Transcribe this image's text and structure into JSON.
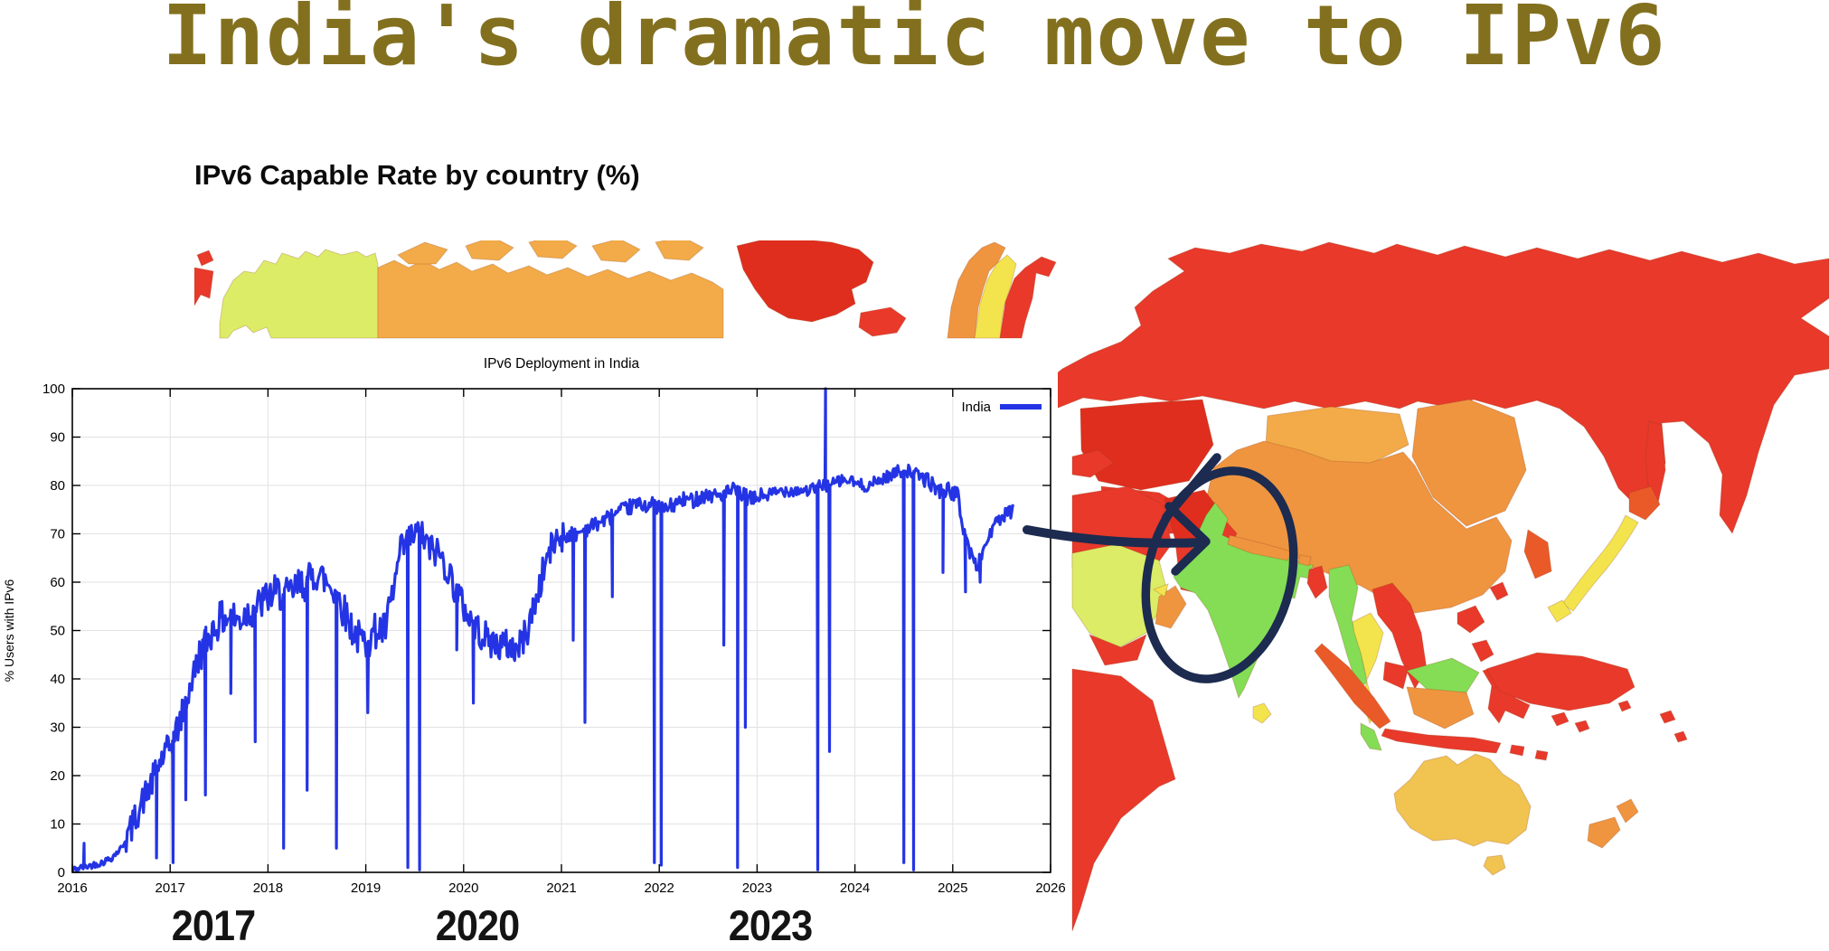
{
  "headline": {
    "text": "India's dramatic move to IPv6",
    "color": "#83701f"
  },
  "map": {
    "heading": "IPv6 Capable Rate by country (%)",
    "colors": {
      "red": "#e8392b",
      "red2": "#df2e1e",
      "red_orange": "#ea5a28",
      "orange": "#ef9540",
      "orange_light": "#f2ab48",
      "yellow_orange": "#f1c351",
      "yellow": "#f3e44e",
      "ygreen": "#dcec67",
      "green": "#84dd55",
      "border": "rgba(140,60,20,0.25)"
    },
    "regions": [
      {
        "key": "chukotka",
        "level": "red"
      },
      {
        "key": "alaska",
        "level": "ygreen"
      },
      {
        "key": "canada-north",
        "level": "orange_light"
      },
      {
        "key": "canada-islands",
        "level": "orange_light"
      },
      {
        "key": "greenland",
        "level": "red2"
      },
      {
        "key": "iceland",
        "level": "red"
      },
      {
        "key": "norway",
        "level": "orange"
      },
      {
        "key": "sweden",
        "level": "yellow"
      },
      {
        "key": "finland",
        "level": "red"
      },
      {
        "key": "russia",
        "level": "red"
      },
      {
        "key": "sakhalin",
        "level": "red"
      },
      {
        "key": "kazakhstan",
        "level": "red2"
      },
      {
        "key": "central-asia",
        "level": "red"
      },
      {
        "key": "mongolia",
        "level": "orange_light"
      },
      {
        "key": "manchuria",
        "level": "orange"
      },
      {
        "key": "china",
        "level": "orange"
      },
      {
        "key": "korea",
        "level": "red_orange"
      },
      {
        "key": "japan-honshu",
        "level": "yellow"
      },
      {
        "key": "hokkaido",
        "level": "red_orange"
      },
      {
        "key": "kyushu",
        "level": "yellow"
      },
      {
        "key": "turkey",
        "level": "red"
      },
      {
        "key": "iran",
        "level": "red"
      },
      {
        "key": "afghanistan",
        "level": "red2"
      },
      {
        "key": "pakistan",
        "level": "red"
      },
      {
        "key": "saudi-arabia",
        "level": "ygreen"
      },
      {
        "key": "yemen",
        "level": "red"
      },
      {
        "key": "oman",
        "level": "orange"
      },
      {
        "key": "uae",
        "level": "yellow"
      },
      {
        "key": "africa-ne",
        "level": "red"
      },
      {
        "key": "india",
        "level": "green"
      },
      {
        "key": "sri-lanka",
        "level": "yellow"
      },
      {
        "key": "nepal",
        "level": "orange"
      },
      {
        "key": "bangladesh",
        "level": "red"
      },
      {
        "key": "myanmar",
        "level": "green"
      },
      {
        "key": "thailand",
        "level": "yellow"
      },
      {
        "key": "vietnam-laos",
        "level": "red"
      },
      {
        "key": "cambodia",
        "level": "red"
      },
      {
        "key": "malaysia",
        "level": "green"
      },
      {
        "key": "borneo-north",
        "level": "green"
      },
      {
        "key": "borneo-south",
        "level": "orange"
      },
      {
        "key": "sumatra",
        "level": "red_orange"
      },
      {
        "key": "java",
        "level": "red"
      },
      {
        "key": "sulawesi",
        "level": "red"
      },
      {
        "key": "philippines",
        "level": "red"
      },
      {
        "key": "taiwan",
        "level": "red"
      },
      {
        "key": "new-guinea",
        "level": "red"
      },
      {
        "key": "pacific-islands",
        "level": "red"
      },
      {
        "key": "australia",
        "level": "yellow_orange"
      },
      {
        "key": "tasmania",
        "level": "yellow_orange"
      },
      {
        "key": "new-zealand",
        "level": "orange"
      }
    ],
    "annotation": {
      "color": "#1c2b4f",
      "target": "India",
      "shapes": [
        "ellipse-around-india",
        "arrow-to-india"
      ]
    }
  },
  "callouts": [
    "2017",
    "2020",
    "2023"
  ],
  "chart_data": {
    "type": "line",
    "title": "IPv6 Deployment in India",
    "ylabel": "% Users with IPv6",
    "xlim": [
      2016,
      2026
    ],
    "ylim": [
      0,
      100
    ],
    "x_ticks": [
      2016,
      2017,
      2018,
      2019,
      2020,
      2021,
      2022,
      2023,
      2024,
      2025,
      2026
    ],
    "y_ticks": [
      0,
      10,
      20,
      30,
      40,
      50,
      60,
      70,
      80,
      90,
      100
    ],
    "grid": true,
    "legend_position": "top-right",
    "legend": [
      {
        "label": "India",
        "color": "#2434e4"
      }
    ],
    "series": [
      {
        "name": "India",
        "color": "#2434e4",
        "x_end": 2025.62,
        "backbone": [
          [
            2016.0,
            0.5
          ],
          [
            2016.1,
            1
          ],
          [
            2016.2,
            1.5
          ],
          [
            2016.3,
            2
          ],
          [
            2016.4,
            3
          ],
          [
            2016.5,
            5
          ],
          [
            2016.6,
            9
          ],
          [
            2016.7,
            14
          ],
          [
            2016.8,
            18
          ],
          [
            2016.9,
            23
          ],
          [
            2017.0,
            26
          ],
          [
            2017.1,
            31
          ],
          [
            2017.2,
            38
          ],
          [
            2017.3,
            45
          ],
          [
            2017.4,
            49
          ],
          [
            2017.5,
            52
          ],
          [
            2017.6,
            53
          ],
          [
            2017.7,
            52
          ],
          [
            2017.8,
            54
          ],
          [
            2017.9,
            55
          ],
          [
            2018.0,
            57
          ],
          [
            2018.1,
            58
          ],
          [
            2018.2,
            57
          ],
          [
            2018.3,
            59
          ],
          [
            2018.4,
            60
          ],
          [
            2018.5,
            62
          ],
          [
            2018.6,
            60
          ],
          [
            2018.7,
            58
          ],
          [
            2018.8,
            53
          ],
          [
            2018.9,
            49
          ],
          [
            2019.0,
            47
          ],
          [
            2019.1,
            50
          ],
          [
            2019.2,
            50
          ],
          [
            2019.3,
            60
          ],
          [
            2019.35,
            66
          ],
          [
            2019.45,
            69
          ],
          [
            2019.55,
            70
          ],
          [
            2019.65,
            67
          ],
          [
            2019.75,
            66
          ],
          [
            2019.85,
            62
          ],
          [
            2019.95,
            57
          ],
          [
            2020.05,
            53
          ],
          [
            2020.15,
            50
          ],
          [
            2020.25,
            48
          ],
          [
            2020.35,
            47
          ],
          [
            2020.45,
            47
          ],
          [
            2020.55,
            46
          ],
          [
            2020.65,
            50
          ],
          [
            2020.75,
            57
          ],
          [
            2020.85,
            65
          ],
          [
            2020.95,
            69
          ],
          [
            2021.05,
            70
          ],
          [
            2021.15,
            70
          ],
          [
            2021.25,
            71
          ],
          [
            2021.35,
            72
          ],
          [
            2021.45,
            73
          ],
          [
            2021.55,
            74
          ],
          [
            2021.65,
            75
          ],
          [
            2021.75,
            76
          ],
          [
            2021.85,
            76
          ],
          [
            2021.95,
            76
          ],
          [
            2022.05,
            75
          ],
          [
            2022.15,
            76
          ],
          [
            2022.25,
            77
          ],
          [
            2022.35,
            77
          ],
          [
            2022.45,
            78
          ],
          [
            2022.55,
            78
          ],
          [
            2022.65,
            78
          ],
          [
            2022.75,
            79
          ],
          [
            2022.85,
            78
          ],
          [
            2022.95,
            77
          ],
          [
            2023.05,
            78
          ],
          [
            2023.15,
            78
          ],
          [
            2023.25,
            79
          ],
          [
            2023.35,
            79
          ],
          [
            2023.45,
            79
          ],
          [
            2023.55,
            79
          ],
          [
            2023.65,
            80
          ],
          [
            2023.75,
            80
          ],
          [
            2023.85,
            81
          ],
          [
            2023.95,
            81
          ],
          [
            2024.05,
            80
          ],
          [
            2024.15,
            80
          ],
          [
            2024.25,
            81
          ],
          [
            2024.35,
            82
          ],
          [
            2024.45,
            83
          ],
          [
            2024.55,
            83
          ],
          [
            2024.65,
            82
          ],
          [
            2024.75,
            81
          ],
          [
            2024.85,
            79
          ],
          [
            2024.95,
            79
          ],
          [
            2025.05,
            78
          ],
          [
            2025.1,
            72
          ],
          [
            2025.18,
            66
          ],
          [
            2025.25,
            63
          ],
          [
            2025.32,
            67
          ],
          [
            2025.4,
            71
          ],
          [
            2025.48,
            73
          ],
          [
            2025.56,
            74
          ],
          [
            2025.62,
            75
          ]
        ],
        "dips": [
          [
            2016.12,
            6
          ],
          [
            2016.86,
            3
          ],
          [
            2017.03,
            2
          ],
          [
            2017.16,
            15
          ],
          [
            2017.36,
            16
          ],
          [
            2017.62,
            37
          ],
          [
            2017.87,
            27
          ],
          [
            2018.16,
            5
          ],
          [
            2018.4,
            17
          ],
          [
            2018.7,
            5
          ],
          [
            2019.02,
            33
          ],
          [
            2019.43,
            1
          ],
          [
            2019.55,
            0.5
          ],
          [
            2019.93,
            46
          ],
          [
            2020.1,
            35
          ],
          [
            2021.12,
            48
          ],
          [
            2021.24,
            31
          ],
          [
            2021.52,
            57
          ],
          [
            2021.95,
            2
          ],
          [
            2022.02,
            1.5
          ],
          [
            2022.66,
            47
          ],
          [
            2022.8,
            1
          ],
          [
            2022.88,
            30
          ],
          [
            2023.62,
            0.5
          ],
          [
            2023.74,
            25
          ],
          [
            2024.5,
            2
          ],
          [
            2024.6,
            0.5
          ],
          [
            2024.9,
            62
          ],
          [
            2025.13,
            58
          ],
          [
            2025.28,
            60
          ]
        ],
        "spikes_up": [
          [
            2023.7,
            100
          ]
        ],
        "noise_segments": [
          {
            "from": 2016.0,
            "to": 2016.55,
            "amp": 0.7
          },
          {
            "from": 2016.55,
            "to": 2017.25,
            "amp": 3.2
          },
          {
            "from": 2017.25,
            "to": 2019.3,
            "amp": 3.8
          },
          {
            "from": 2019.3,
            "to": 2021.05,
            "amp": 3.4
          },
          {
            "from": 2021.05,
            "to": 2023.2,
            "amp": 1.6
          },
          {
            "from": 2023.2,
            "to": 2024.7,
            "amp": 1.3
          },
          {
            "from": 2024.7,
            "to": 2025.62,
            "amp": 1.6
          }
        ]
      }
    ]
  }
}
